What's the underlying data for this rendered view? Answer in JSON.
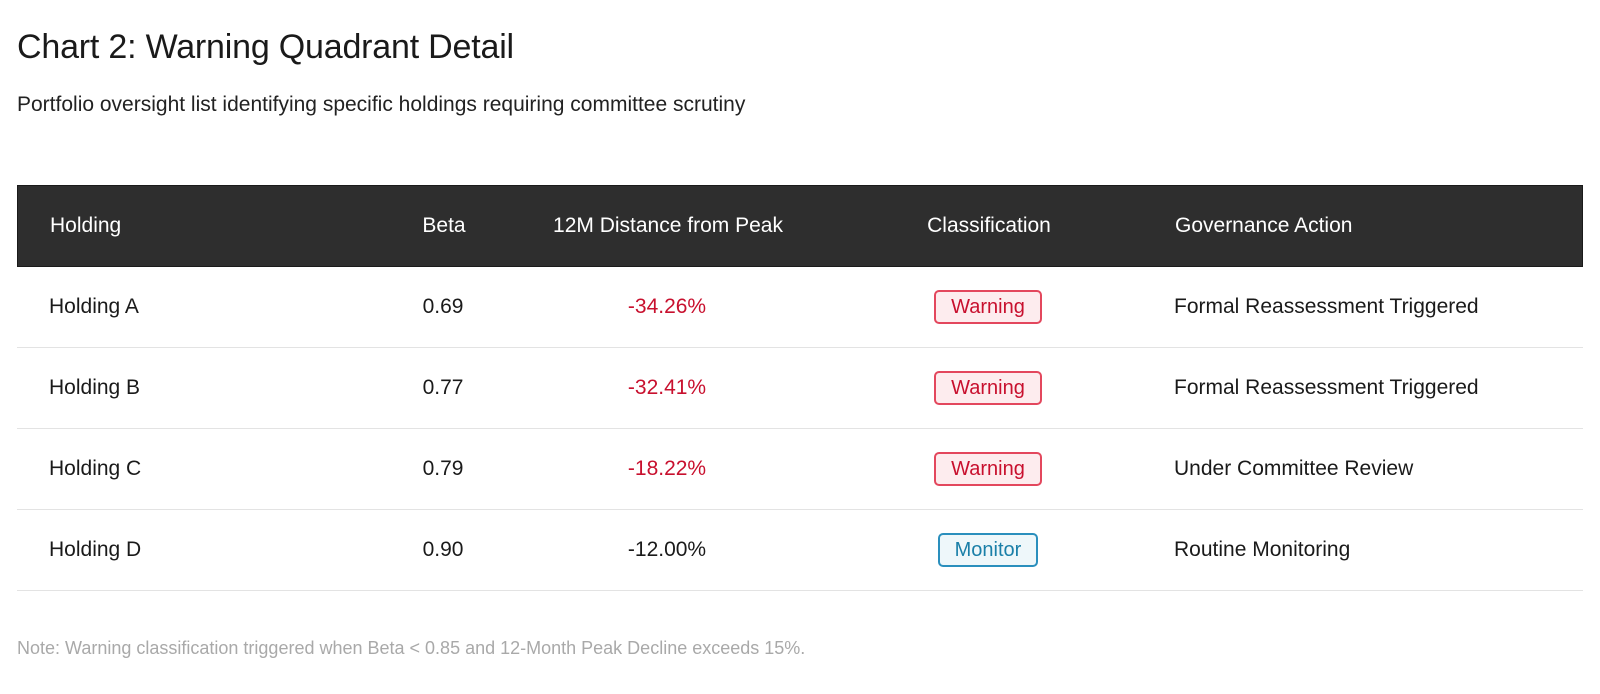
{
  "header": {
    "title": "Chart 2: Warning Quadrant Detail",
    "subtitle": "Portfolio oversight list identifying specific holdings requiring committee scrutiny"
  },
  "table": {
    "columns": [
      "Holding",
      "Beta",
      "12M Distance from Peak",
      "Classification",
      "Governance Action"
    ],
    "rows": [
      {
        "holding": "Holding A",
        "beta": "0.69",
        "distance": "-34.26%",
        "classification": "Warning",
        "action": "Formal Reassessment Triggered"
      },
      {
        "holding": "Holding B",
        "beta": "0.77",
        "distance": "-32.41%",
        "classification": "Warning",
        "action": "Formal Reassessment Triggered"
      },
      {
        "holding": "Holding C",
        "beta": "0.79",
        "distance": "-18.22%",
        "classification": "Warning",
        "action": "Under Committee Review"
      },
      {
        "holding": "Holding D",
        "beta": "0.90",
        "distance": "-12.00%",
        "classification": "Monitor",
        "action": "Routine Monitoring"
      }
    ]
  },
  "colors": {
    "header_bg": "#2e2e2e",
    "warning": "#c8102e",
    "monitor": "#1a7fa8",
    "note": "#a9a9a9"
  },
  "footer": {
    "note": "Note: Warning classification triggered when Beta < 0.85 and 12-Month Peak Decline exceeds 15%."
  }
}
